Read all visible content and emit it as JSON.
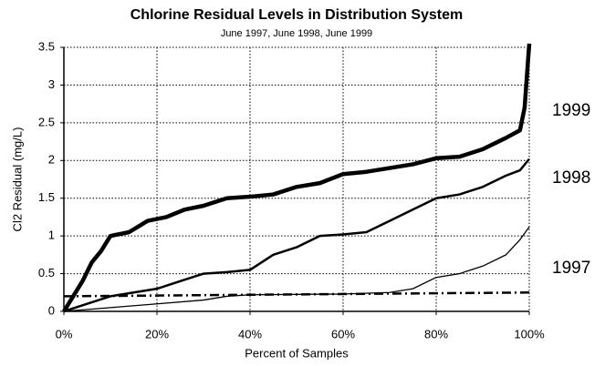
{
  "chart_data": {
    "type": "line",
    "title": "Chlorine Residual Levels in Distribution System",
    "subtitle": "June 1997, June 1998, June 1999",
    "x_label": "Percent of Samples",
    "y_label": "Cl2 Residual (mg/L)",
    "xlim": [
      0,
      100
    ],
    "ylim": [
      0,
      3.5
    ],
    "xticks": [
      {
        "value": 0,
        "label": "0%"
      },
      {
        "value": 20,
        "label": "20%"
      },
      {
        "value": 40,
        "label": "40%"
      },
      {
        "value": 60,
        "label": "60%"
      },
      {
        "value": 80,
        "label": "80%"
      },
      {
        "value": 100,
        "label": "100%"
      }
    ],
    "yticks": [
      0,
      0.5,
      1,
      1.5,
      2,
      2.5,
      3,
      3.5
    ],
    "grid": true,
    "series": [
      {
        "name": "1999",
        "color": "#000000",
        "width": 4.5,
        "x": [
          0,
          2,
          4,
          6,
          8,
          10,
          14,
          18,
          22,
          26,
          30,
          35,
          40,
          45,
          50,
          55,
          60,
          65,
          70,
          75,
          80,
          85,
          90,
          95,
          98,
          99,
          100
        ],
        "values": [
          0,
          0.2,
          0.4,
          0.65,
          0.8,
          1.0,
          1.05,
          1.2,
          1.25,
          1.35,
          1.4,
          1.5,
          1.52,
          1.55,
          1.65,
          1.7,
          1.82,
          1.85,
          1.9,
          1.95,
          2.03,
          2.05,
          2.15,
          2.3,
          2.4,
          2.7,
          3.55
        ]
      },
      {
        "name": "1998",
        "color": "#000000",
        "width": 2.5,
        "x": [
          0,
          5,
          10,
          15,
          20,
          25,
          30,
          35,
          40,
          45,
          50,
          55,
          60,
          65,
          70,
          75,
          80,
          85,
          90,
          95,
          98,
          100
        ],
        "values": [
          0,
          0.1,
          0.2,
          0.25,
          0.3,
          0.4,
          0.5,
          0.52,
          0.55,
          0.75,
          0.85,
          1.0,
          1.02,
          1.05,
          1.2,
          1.35,
          1.5,
          1.55,
          1.65,
          1.8,
          1.87,
          2.02
        ]
      },
      {
        "name": "1997",
        "color": "#000000",
        "width": 1.3,
        "x": [
          0,
          10,
          20,
          30,
          35,
          40,
          60,
          70,
          75,
          80,
          85,
          90,
          95,
          98,
          100
        ],
        "values": [
          0,
          0.05,
          0.1,
          0.15,
          0.2,
          0.22,
          0.23,
          0.25,
          0.3,
          0.45,
          0.5,
          0.6,
          0.75,
          0.95,
          1.12
        ]
      },
      {
        "color": "#000000",
        "width": 2.5,
        "dash": true,
        "x": [
          0,
          100
        ],
        "values": [
          0.2,
          0.25
        ]
      }
    ]
  }
}
